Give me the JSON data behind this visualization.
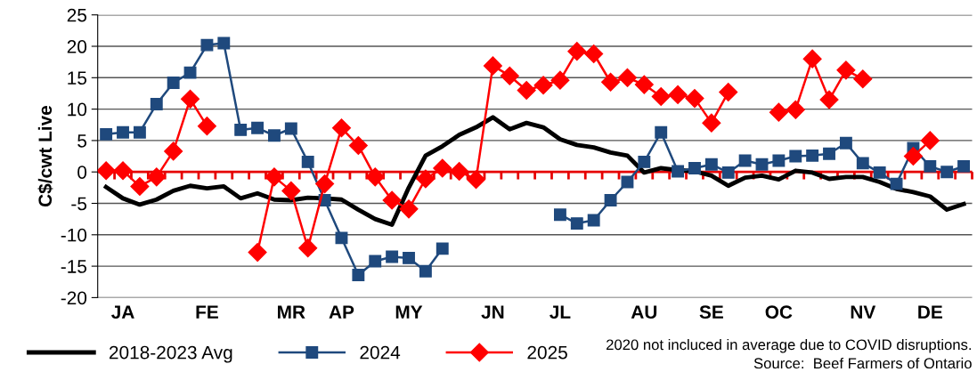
{
  "chart_data": {
    "type": "line",
    "ylabel": "C$/cwt Live",
    "categories": [
      null,
      "JA",
      null,
      null,
      null,
      null,
      "FE",
      null,
      null,
      null,
      null,
      "MR",
      null,
      null,
      "AP",
      null,
      null,
      null,
      "MY",
      null,
      null,
      null,
      null,
      "JN",
      null,
      null,
      null,
      "JL",
      null,
      null,
      null,
      null,
      "AU",
      null,
      null,
      null,
      "SE",
      null,
      null,
      null,
      "OC",
      null,
      null,
      null,
      null,
      "NV",
      null,
      null,
      null,
      "DE",
      null,
      null
    ],
    "series": [
      {
        "name": "2018-2023 Avg",
        "color": "#000000",
        "marker": "none",
        "values": [
          -2.4,
          -4.2,
          -5.2,
          -4.4,
          -3.0,
          -2.2,
          -2.6,
          -2.3,
          -4.2,
          -3.4,
          -4.4,
          -4.5,
          -4.1,
          -4.2,
          -4.4,
          -6.0,
          -7.5,
          -8.4,
          -2.5,
          2.6,
          4.1,
          5.9,
          7.1,
          8.7,
          6.8,
          7.8,
          7.1,
          5.2,
          4.3,
          3.9,
          3.1,
          2.6,
          -0.1,
          0.6,
          0.3,
          0.1,
          -0.6,
          -2.2,
          -0.9,
          -0.6,
          -1.2,
          0.2,
          -0.1,
          -1.1,
          -0.8,
          -0.8,
          -1.6,
          -2.7,
          -3.2,
          -3.9,
          -6.0,
          -5.1
        ]
      },
      {
        "name": "2024",
        "color": "#1f497d",
        "marker": "square",
        "values": [
          6.0,
          6.3,
          6.3,
          10.8,
          14.2,
          15.8,
          20.2,
          20.5,
          6.7,
          7.0,
          5.8,
          6.9,
          1.6,
          -4.5,
          -10.5,
          -16.4,
          -14.2,
          -13.5,
          -13.7,
          -15.8,
          -12.2,
          null,
          null,
          null,
          null,
          null,
          null,
          -6.8,
          -8.2,
          -7.7,
          -4.5,
          -1.6,
          1.6,
          6.3,
          0.1,
          0.6,
          1.2,
          -0.1,
          1.8,
          1.2,
          1.8,
          2.5,
          2.6,
          2.9,
          4.6,
          1.4,
          -0.1,
          -1.9,
          3.8,
          0.9,
          0.0,
          0.9
        ]
      },
      {
        "name": "2025",
        "color": "#ff0000",
        "marker": "diamond",
        "values": [
          0.2,
          0.2,
          -2.3,
          -0.8,
          3.3,
          11.6,
          7.3,
          null,
          null,
          -12.8,
          -0.8,
          -3.0,
          -12.1,
          -1.9,
          7.0,
          4.2,
          -0.8,
          -4.5,
          -5.9,
          -1.1,
          0.6,
          0.1,
          -1.2,
          16.9,
          15.3,
          13.0,
          13.8,
          14.6,
          19.2,
          18.8,
          14.3,
          15.0,
          13.9,
          12.0,
          12.3,
          11.7,
          7.8,
          12.7,
          null,
          null,
          9.5,
          9.9,
          18.0,
          11.5,
          16.2,
          14.8,
          null,
          null,
          2.5,
          5.0,
          null,
          null
        ]
      }
    ],
    "ylim": [
      -20,
      25
    ],
    "yticks": [
      -20,
      -15,
      -10,
      -5,
      0,
      5,
      10,
      15,
      20,
      25
    ],
    "ref_lines": [
      {
        "axis": "y",
        "value": 0,
        "color": "#e60000"
      }
    ],
    "grid": "y",
    "legend": "bottom left",
    "line_style": "solid",
    "annotations": [
      "2020 not incluced in average due to COVID disruptions.",
      "Source:  Beef Farmers of Ontario"
    ]
  }
}
